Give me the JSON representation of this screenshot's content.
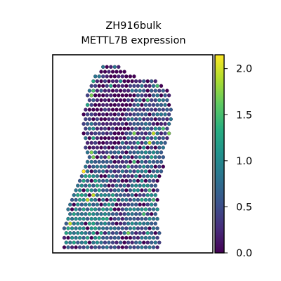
{
  "chart_data": {
    "type": "scatter",
    "title_lines": [
      "ZH916bulk",
      "METTL7B expression"
    ],
    "xlabel": "",
    "ylabel": "",
    "grid": false,
    "legend": "none",
    "colorbar": {
      "colormap": "viridis",
      "range": [
        0.0,
        2.15
      ],
      "ticks": [
        0.0,
        0.5,
        1.0,
        1.5,
        2.0
      ],
      "tick_labels": [
        "0.0",
        "0.5",
        "1.0",
        "1.5",
        "2.0"
      ]
    },
    "spot_region": {
      "x_range": [
        0,
        100
      ],
      "y_range": [
        0,
        100
      ],
      "outline": [
        [
          2,
          0
        ],
        [
          78,
          0
        ],
        [
          78,
          10
        ],
        [
          75,
          14
        ],
        [
          76,
          22
        ],
        [
          76,
          30
        ],
        [
          77,
          38
        ],
        [
          80,
          45
        ],
        [
          81,
          56
        ],
        [
          84,
          62
        ],
        [
          86,
          68
        ],
        [
          86,
          76
        ],
        [
          84,
          86
        ],
        [
          74,
          91
        ],
        [
          60,
          93
        ],
        [
          50,
          97
        ],
        [
          45,
          100
        ],
        [
          32,
          100
        ],
        [
          22,
          88
        ],
        [
          18,
          75
        ],
        [
          18,
          60
        ],
        [
          20,
          47
        ],
        [
          16,
          40
        ],
        [
          10,
          32
        ],
        [
          6,
          22
        ],
        [
          2,
          10
        ]
      ],
      "low_expression_zone": [
        [
          20,
          52
        ],
        [
          30,
          90
        ],
        [
          45,
          100
        ],
        [
          58,
          94
        ],
        [
          50,
          60
        ],
        [
          40,
          52
        ],
        [
          30,
          55
        ]
      ],
      "moderate_zone": [
        [
          50,
          10
        ],
        [
          62,
          55
        ],
        [
          74,
          70
        ],
        [
          78,
          10
        ]
      ],
      "high_expression_zone": [
        [
          3,
          2
        ],
        [
          30,
          1
        ],
        [
          45,
          25
        ],
        [
          20,
          45
        ],
        [
          6,
          30
        ]
      ],
      "hex_spacing": 3.0,
      "colors": {
        "low": "#440154",
        "mid": "#21918c",
        "high": "#fde725",
        "edge": "#2b0a3d"
      }
    },
    "note_spot_counts": "approximately 1000 hexagonal spots"
  }
}
